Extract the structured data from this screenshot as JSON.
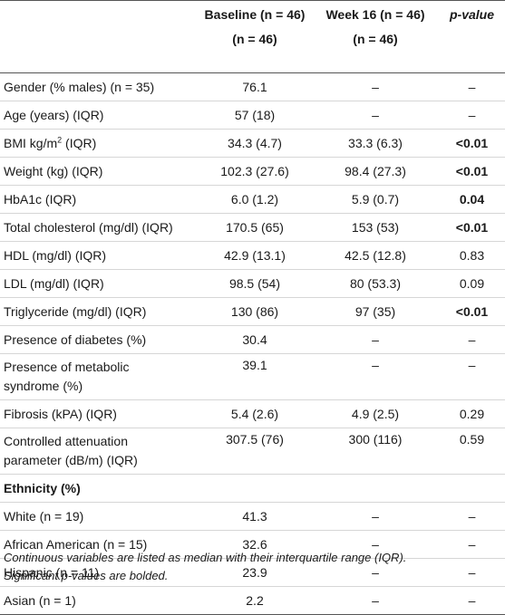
{
  "header": {
    "col1_line1": "Baseline (n = 46)",
    "col1_line2": "(n = 46)",
    "col2_line1": "Week 16 (n = 46)",
    "col2_line2": "(n = 46)",
    "col3": "p-value"
  },
  "rows": [
    {
      "label": "Gender (% males) (n = 35)",
      "baseline": "76.1",
      "week16": "–",
      "p": "–",
      "p_bold": false
    },
    {
      "label": "Age (years) (IQR)",
      "baseline": "57 (18)",
      "week16": "–",
      "p": "–",
      "p_bold": false
    },
    {
      "label_pre": "BMI kg/m",
      "label_sup": "2",
      "label_post": " (IQR)",
      "baseline": "34.3 (4.7)",
      "week16": "33.3 (6.3)",
      "p": "<0.01",
      "p_bold": true
    },
    {
      "label": "Weight (kg) (IQR)",
      "baseline": "102.3 (27.6)",
      "week16": "98.4 (27.3)",
      "p": "<0.01",
      "p_bold": true
    },
    {
      "label": "HbA1c (IQR)",
      "baseline": "6.0 (1.2)",
      "week16": "5.9 (0.7)",
      "p": "0.04",
      "p_bold": true
    },
    {
      "label": "Total cholesterol (mg/dl) (IQR)",
      "baseline": "170.5 (65)",
      "week16": "153 (53)",
      "p": "<0.01",
      "p_bold": true
    },
    {
      "label": "HDL (mg/dl) (IQR)",
      "baseline": "42.9 (13.1)",
      "week16": "42.5 (12.8)",
      "p": "0.83",
      "p_bold": false
    },
    {
      "label": "LDL (mg/dl) (IQR)",
      "baseline": "98.5 (54)",
      "week16": "80 (53.3)",
      "p": "0.09",
      "p_bold": false
    },
    {
      "label": "Triglyceride (mg/dl) (IQR)",
      "baseline": "130 (86)",
      "week16": "97 (35)",
      "p": "<0.01",
      "p_bold": true
    },
    {
      "label": "Presence of diabetes (%)",
      "baseline": "30.4",
      "week16": "–",
      "p": "–",
      "p_bold": false
    },
    {
      "label_line1": "Presence of metabolic",
      "label_line2": "syndrome (%)",
      "baseline": "39.1",
      "week16": "–",
      "p": "–",
      "p_bold": false
    },
    {
      "label": "Fibrosis (kPA) (IQR)",
      "baseline": "5.4 (2.6)",
      "week16": "4.9 (2.5)",
      "p": "0.29",
      "p_bold": false
    },
    {
      "label_line1": "Controlled attenuation",
      "label_line2": "parameter (dB/m) (IQR)",
      "baseline": "307.5 (76)",
      "week16": "300 (116)",
      "p": "0.59",
      "p_bold": false
    }
  ],
  "section": {
    "label": "Ethnicity (%)"
  },
  "ethnicity_rows": [
    {
      "label": "White (n = 19)",
      "baseline": "41.3",
      "week16": "–",
      "p": "–"
    },
    {
      "label": "African American (n = 15)",
      "baseline": "32.6",
      "week16": "–",
      "p": "–"
    },
    {
      "label": "Hispanic (n = 11)",
      "baseline": "23.9",
      "week16": "–",
      "p": "–"
    },
    {
      "label": "Asian (n = 1)",
      "baseline": "2.2",
      "week16": "–",
      "p": "–"
    }
  ],
  "notes": {
    "line1": "Continuous variables are listed as median with their interquartile range (IQR).",
    "line2": "Significant p-values are bolded."
  }
}
